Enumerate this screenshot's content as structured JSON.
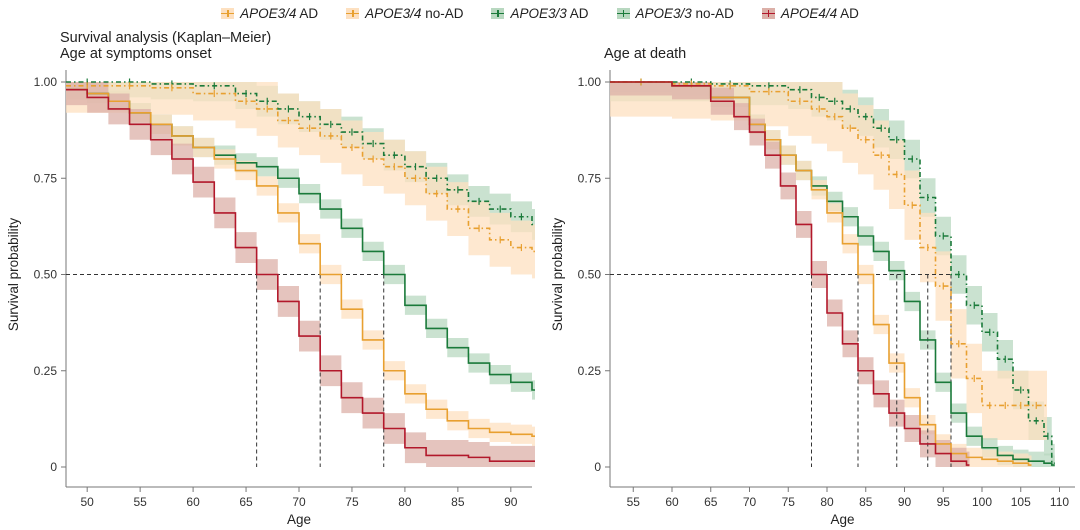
{
  "legend": [
    {
      "gene": "APOE3/4",
      "suffix": " AD",
      "color": "#e8a030",
      "fill": "#fde0c0",
      "dashed": false
    },
    {
      "gene": "APOE3/4",
      "suffix": " no-AD",
      "color": "#e8a030",
      "fill": "#fde0c0",
      "dashed": true
    },
    {
      "gene": "APOE3/3",
      "suffix": " AD",
      "color": "#1a7a3a",
      "fill": "#b8d8c0",
      "dashed": false
    },
    {
      "gene": "APOE3/3",
      "suffix": " no-AD",
      "color": "#1a7a3a",
      "fill": "#b8d8c0",
      "dashed": true
    },
    {
      "gene": "APOE4/4",
      "suffix": " AD",
      "color": "#b2182b",
      "fill": "#dcb0a8",
      "dashed": false
    }
  ],
  "chart_data": [
    {
      "type": "line",
      "title": "Survival analysis (Kaplan–Meier)",
      "subtitle": "Age at symptoms onset",
      "xlabel": "Age",
      "ylabel": "Survival probability",
      "xlim": [
        48,
        92
      ],
      "ylim": [
        0,
        1
      ],
      "xticks": [
        50,
        55,
        60,
        65,
        70,
        75,
        80,
        85,
        90
      ],
      "yticks": [
        0,
        0.25,
        0.5,
        0.75,
        1.0
      ],
      "ytick_labels": [
        "0",
        "0.25",
        "0.50",
        "0.75",
        "1.00"
      ],
      "median_line": 0.5,
      "medians": [
        66,
        72,
        78
      ],
      "series": [
        {
          "name": "APOE3/3 no-AD",
          "color": "#1a7a3a",
          "fill": "#b8d8c0",
          "dashed": true,
          "x": [
            48,
            52,
            56,
            60,
            64,
            66,
            68,
            70,
            72,
            74,
            76,
            78,
            80,
            82,
            84,
            86,
            88,
            90,
            92
          ],
          "y": [
            1.0,
            1.0,
            0.995,
            0.99,
            0.97,
            0.95,
            0.93,
            0.91,
            0.89,
            0.87,
            0.84,
            0.81,
            0.78,
            0.75,
            0.72,
            0.69,
            0.67,
            0.65,
            0.63
          ],
          "ci": 0.04
        },
        {
          "name": "APOE3/4 no-AD",
          "color": "#e8a030",
          "fill": "#fde0c0",
          "dashed": true,
          "x": [
            48,
            52,
            56,
            60,
            64,
            66,
            68,
            70,
            72,
            74,
            76,
            78,
            80,
            82,
            84,
            86,
            88,
            90,
            92
          ],
          "y": [
            0.99,
            0.99,
            0.985,
            0.97,
            0.95,
            0.93,
            0.9,
            0.88,
            0.86,
            0.83,
            0.8,
            0.78,
            0.75,
            0.71,
            0.67,
            0.62,
            0.59,
            0.57,
            0.56
          ],
          "ci": 0.07
        },
        {
          "name": "APOE3/3 AD",
          "color": "#1a7a3a",
          "fill": "#b8d8c0",
          "dashed": false,
          "x": [
            48,
            50,
            52,
            54,
            56,
            58,
            60,
            62,
            64,
            66,
            68,
            70,
            72,
            74,
            76,
            78,
            80,
            82,
            84,
            86,
            88,
            90,
            92
          ],
          "y": [
            0.98,
            0.97,
            0.95,
            0.92,
            0.89,
            0.86,
            0.83,
            0.81,
            0.79,
            0.78,
            0.75,
            0.71,
            0.67,
            0.62,
            0.56,
            0.5,
            0.42,
            0.36,
            0.31,
            0.27,
            0.24,
            0.22,
            0.2
          ],
          "ci": 0.025
        },
        {
          "name": "APOE3/4 AD",
          "color": "#e8a030",
          "fill": "#fde0c0",
          "dashed": false,
          "x": [
            48,
            50,
            52,
            54,
            56,
            58,
            60,
            62,
            64,
            66,
            68,
            70,
            72,
            74,
            76,
            78,
            80,
            82,
            84,
            86,
            88,
            90,
            92
          ],
          "y": [
            0.98,
            0.97,
            0.95,
            0.92,
            0.89,
            0.86,
            0.83,
            0.8,
            0.77,
            0.73,
            0.66,
            0.58,
            0.5,
            0.41,
            0.33,
            0.25,
            0.19,
            0.15,
            0.12,
            0.1,
            0.09,
            0.085,
            0.08
          ],
          "ci": 0.025
        },
        {
          "name": "APOE4/4 AD",
          "color": "#b2182b",
          "fill": "#dcb0a8",
          "dashed": false,
          "x": [
            48,
            50,
            52,
            54,
            56,
            58,
            60,
            62,
            64,
            66,
            68,
            70,
            72,
            74,
            76,
            78,
            80,
            82,
            84,
            86,
            88,
            90,
            92
          ],
          "y": [
            0.98,
            0.96,
            0.93,
            0.89,
            0.85,
            0.8,
            0.74,
            0.66,
            0.57,
            0.5,
            0.43,
            0.34,
            0.25,
            0.18,
            0.14,
            0.1,
            0.05,
            0.03,
            0.03,
            0.025,
            0.015,
            0.015,
            0.015
          ],
          "ci": 0.04
        }
      ]
    },
    {
      "type": "line",
      "title": "",
      "subtitle": "Age at death",
      "xlabel": "Age",
      "ylabel": "Survival probability",
      "xlim": [
        52,
        112
      ],
      "ylim": [
        0,
        1
      ],
      "xticks": [
        55,
        60,
        65,
        70,
        75,
        80,
        85,
        90,
        95,
        100,
        105,
        110
      ],
      "yticks": [
        0,
        0.25,
        0.5,
        0.75,
        1.0
      ],
      "ytick_labels": [
        "0",
        "0.25",
        "0.50",
        "0.75",
        "1.00"
      ],
      "median_line": 0.5,
      "medians": [
        78,
        84,
        89,
        93,
        96
      ],
      "series": [
        {
          "name": "APOE3/3 no-AD",
          "color": "#1a7a3a",
          "fill": "#b8d8c0",
          "dashed": true,
          "x": [
            52,
            60,
            65,
            70,
            75,
            78,
            80,
            82,
            84,
            86,
            88,
            90,
            92,
            94,
            96,
            98,
            100,
            102,
            104,
            106,
            108,
            109
          ],
          "y": [
            1.0,
            1.0,
            0.995,
            0.99,
            0.98,
            0.96,
            0.95,
            0.93,
            0.91,
            0.88,
            0.85,
            0.8,
            0.7,
            0.6,
            0.5,
            0.42,
            0.35,
            0.28,
            0.2,
            0.12,
            0.08,
            0.01
          ],
          "ci": 0.05
        },
        {
          "name": "APOE3/4 no-AD",
          "color": "#e8a030",
          "fill": "#fde0c0",
          "dashed": true,
          "x": [
            52,
            60,
            65,
            70,
            75,
            78,
            80,
            82,
            84,
            86,
            88,
            90,
            92,
            94,
            96,
            98,
            100,
            102,
            104,
            106,
            108
          ],
          "y": [
            1.0,
            0.995,
            0.99,
            0.975,
            0.95,
            0.93,
            0.91,
            0.88,
            0.85,
            0.81,
            0.76,
            0.68,
            0.57,
            0.47,
            0.32,
            0.23,
            0.16,
            0.16,
            0.16,
            0.16,
            0.16
          ],
          "ci": 0.09
        },
        {
          "name": "APOE3/3 AD",
          "color": "#1a7a3a",
          "fill": "#b8d8c0",
          "dashed": false,
          "x": [
            52,
            60,
            65,
            70,
            72,
            74,
            76,
            78,
            80,
            82,
            84,
            86,
            88,
            90,
            92,
            94,
            96,
            98,
            100,
            102,
            104,
            106,
            108,
            109
          ],
          "y": [
            1.0,
            0.99,
            0.96,
            0.89,
            0.85,
            0.81,
            0.77,
            0.73,
            0.69,
            0.65,
            0.6,
            0.56,
            0.51,
            0.43,
            0.33,
            0.22,
            0.14,
            0.08,
            0.05,
            0.03,
            0.02,
            0.015,
            0.01,
            0.005
          ],
          "ci": 0.025
        },
        {
          "name": "APOE3/4 AD",
          "color": "#e8a030",
          "fill": "#fde0c0",
          "dashed": false,
          "x": [
            52,
            60,
            65,
            70,
            72,
            74,
            76,
            78,
            80,
            82,
            84,
            86,
            88,
            90,
            92,
            94,
            96,
            98,
            100,
            102,
            104,
            106
          ],
          "y": [
            1.0,
            0.99,
            0.96,
            0.89,
            0.85,
            0.81,
            0.77,
            0.72,
            0.66,
            0.58,
            0.5,
            0.37,
            0.27,
            0.18,
            0.11,
            0.06,
            0.035,
            0.025,
            0.02,
            0.015,
            0.01,
            0.005
          ],
          "ci": 0.025
        },
        {
          "name": "APOE4/4 AD",
          "color": "#b2182b",
          "fill": "#dcb0a8",
          "dashed": false,
          "x": [
            52,
            60,
            65,
            68,
            70,
            72,
            74,
            76,
            78,
            80,
            82,
            84,
            86,
            88,
            90,
            92,
            94,
            96,
            98
          ],
          "y": [
            1.0,
            0.99,
            0.95,
            0.91,
            0.87,
            0.81,
            0.73,
            0.63,
            0.5,
            0.4,
            0.32,
            0.25,
            0.19,
            0.14,
            0.1,
            0.06,
            0.035,
            0.015,
            0.005
          ],
          "ci": 0.035
        }
      ]
    }
  ]
}
